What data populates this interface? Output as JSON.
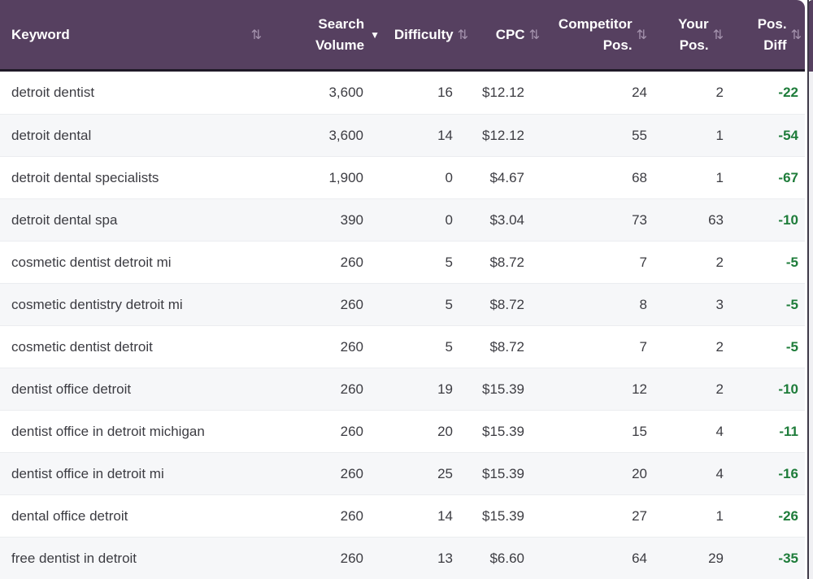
{
  "table": {
    "columns": {
      "keyword": {
        "label": "Keyword",
        "sort_icon": "⇅"
      },
      "search_volume": {
        "line1": "Search",
        "line2": "Volume",
        "sorted": "desc",
        "sort_indicator": "▼"
      },
      "difficulty": {
        "label": "Difficulty",
        "sort_icon": "⇅"
      },
      "cpc": {
        "label": "CPC",
        "sort_icon": "⇅"
      },
      "competitor_pos": {
        "line1": "Competitor",
        "line2": "Pos.",
        "sort_icon": "⇅"
      },
      "your_pos": {
        "line1": "Your",
        "line2": "Pos.",
        "sort_icon": "⇅"
      },
      "pos_diff": {
        "line1": "Pos.",
        "line2": "Diff",
        "sort_icon": "⇅"
      }
    },
    "rows": [
      {
        "keyword": "detroit dentist",
        "search_volume": "3,600",
        "difficulty": "16",
        "cpc": "$12.12",
        "competitor_pos": "24",
        "your_pos": "2",
        "pos_diff": "-22"
      },
      {
        "keyword": "detroit dental",
        "search_volume": "3,600",
        "difficulty": "14",
        "cpc": "$12.12",
        "competitor_pos": "55",
        "your_pos": "1",
        "pos_diff": "-54"
      },
      {
        "keyword": "detroit dental specialists",
        "search_volume": "1,900",
        "difficulty": "0",
        "cpc": "$4.67",
        "competitor_pos": "68",
        "your_pos": "1",
        "pos_diff": "-67"
      },
      {
        "keyword": "detroit dental spa",
        "search_volume": "390",
        "difficulty": "0",
        "cpc": "$3.04",
        "competitor_pos": "73",
        "your_pos": "63",
        "pos_diff": "-10"
      },
      {
        "keyword": "cosmetic dentist detroit mi",
        "search_volume": "260",
        "difficulty": "5",
        "cpc": "$8.72",
        "competitor_pos": "7",
        "your_pos": "2",
        "pos_diff": "-5"
      },
      {
        "keyword": "cosmetic dentistry detroit mi",
        "search_volume": "260",
        "difficulty": "5",
        "cpc": "$8.72",
        "competitor_pos": "8",
        "your_pos": "3",
        "pos_diff": "-5"
      },
      {
        "keyword": "cosmetic dentist detroit",
        "search_volume": "260",
        "difficulty": "5",
        "cpc": "$8.72",
        "competitor_pos": "7",
        "your_pos": "2",
        "pos_diff": "-5"
      },
      {
        "keyword": "dentist office detroit",
        "search_volume": "260",
        "difficulty": "19",
        "cpc": "$15.39",
        "competitor_pos": "12",
        "your_pos": "2",
        "pos_diff": "-10"
      },
      {
        "keyword": "dentist office in detroit michigan",
        "search_volume": "260",
        "difficulty": "20",
        "cpc": "$15.39",
        "competitor_pos": "15",
        "your_pos": "4",
        "pos_diff": "-11"
      },
      {
        "keyword": "dentist office in detroit mi",
        "search_volume": "260",
        "difficulty": "25",
        "cpc": "$15.39",
        "competitor_pos": "20",
        "your_pos": "4",
        "pos_diff": "-16"
      },
      {
        "keyword": "dental office detroit",
        "search_volume": "260",
        "difficulty": "14",
        "cpc": "$15.39",
        "competitor_pos": "27",
        "your_pos": "1",
        "pos_diff": "-26"
      },
      {
        "keyword": "free dentist in detroit",
        "search_volume": "260",
        "difficulty": "13",
        "cpc": "$6.60",
        "competitor_pos": "64",
        "your_pos": "29",
        "pos_diff": "-35"
      }
    ]
  },
  "colors": {
    "header_bg": "#564060",
    "header_text": "#ffffff",
    "header_border_bottom": "#201a28",
    "sort_icon": "#a593ae",
    "row_stripe": "#f6f7f9",
    "row_divider": "#ebedf0",
    "body_text": "#3c3c42",
    "pos_diff_green": "#1e7c3a"
  }
}
